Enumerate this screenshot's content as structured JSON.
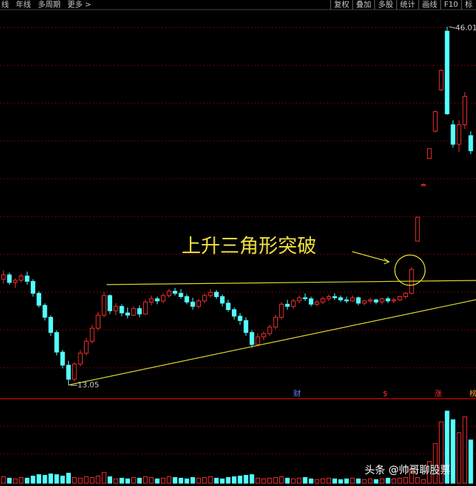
{
  "chart_data": {
    "type": "candlestick",
    "toolbar_left": [
      "线",
      "年线",
      "多周期",
      "更多 >"
    ],
    "toolbar_right": [
      "复权",
      "叠加",
      "多股",
      "统计",
      "画线",
      "F10",
      "标"
    ],
    "annotation": "上升三角形突破",
    "max_label": 46.01,
    "min_label": 13.05,
    "markers": [
      "财",
      "$",
      "涨",
      "榜"
    ],
    "watermark": "头条 @帅哥聊股票",
    "ylim": [
      11.5,
      47.2
    ],
    "volume_ylim": [
      0,
      100
    ],
    "up_color": "#ff3030",
    "down_color": "#54ffff",
    "open": [
      22.8,
      23.2,
      22.5,
      22.7,
      23.1,
      22.6,
      21.5,
      20.4,
      19.3,
      17.9,
      16.1,
      14.9,
      13.6,
      15.0,
      16.0,
      17.1,
      18.3,
      19.5,
      21.3,
      19.9,
      20.3,
      19.7,
      19.5,
      20.1,
      19.6,
      20.7,
      21.0,
      20.8,
      21.3,
      21.7,
      21.5,
      21.2,
      20.7,
      20.3,
      20.8,
      21.3,
      21.6,
      21.2,
      20.6,
      20.0,
      19.4,
      19.0,
      17.9,
      16.8,
      17.5,
      17.8,
      18.4,
      19.3,
      20.5,
      20.3,
      20.8,
      21.1,
      21.0,
      20.5,
      20.7,
      21.0,
      21.2,
      21.1,
      20.9,
      20.8,
      21.1,
      20.6,
      20.8,
      20.9,
      20.7,
      21.0,
      20.8,
      20.9,
      21.2,
      21.5,
      26.3,
      31.4,
      33.9,
      36.4,
      40.2,
      45.6,
      37.0,
      35.2,
      37.0,
      36.0
    ],
    "high": [
      23.6,
      23.4,
      22.9,
      23.3,
      23.5,
      22.8,
      21.7,
      20.6,
      19.5,
      18.1,
      16.3,
      15.3,
      15.2,
      16.3,
      17.4,
      18.6,
      19.8,
      21.6,
      21.4,
      20.6,
      20.5,
      20.2,
      20.3,
      20.4,
      20.9,
      21.3,
      21.2,
      21.5,
      21.9,
      22.0,
      21.9,
      21.4,
      21.1,
      21.0,
      21.5,
      21.9,
      21.8,
      21.4,
      20.9,
      20.2,
      19.7,
      19.3,
      18.1,
      17.8,
      18.0,
      18.6,
      19.5,
      20.7,
      20.9,
      21.0,
      21.3,
      21.5,
      21.2,
      20.9,
      21.2,
      21.4,
      21.5,
      21.3,
      21.2,
      21.3,
      21.2,
      20.9,
      21.1,
      21.0,
      21.1,
      21.2,
      21.1,
      21.3,
      21.6,
      23.9,
      28.5,
      31.6,
      34.8,
      38.3,
      42.1,
      46.01,
      37.4,
      37.4,
      40.0,
      36.4
    ],
    "low": [
      22.4,
      22.3,
      22.0,
      22.5,
      22.3,
      21.2,
      20.2,
      19.0,
      17.6,
      15.8,
      14.6,
      13.05,
      13.4,
      14.8,
      15.8,
      16.9,
      18.1,
      19.3,
      19.6,
      19.5,
      19.4,
      19.2,
      19.4,
      19.3,
      19.5,
      20.4,
      20.5,
      20.6,
      21.1,
      21.3,
      21.0,
      20.5,
      20.0,
      20.1,
      20.6,
      21.1,
      21.0,
      20.3,
      19.8,
      19.1,
      18.6,
      17.6,
      16.5,
      16.6,
      17.2,
      17.6,
      18.2,
      19.1,
      20.0,
      20.1,
      20.6,
      20.8,
      20.3,
      20.3,
      20.5,
      20.8,
      20.9,
      20.7,
      20.6,
      20.7,
      20.4,
      20.4,
      20.6,
      20.5,
      20.5,
      20.6,
      20.6,
      20.8,
      21.0,
      21.4,
      26.3,
      31.4,
      33.9,
      36.3,
      40.1,
      37.9,
      34.9,
      34.5,
      36.6,
      34.3
    ],
    "close": [
      23.2,
      22.5,
      22.7,
      23.1,
      22.6,
      21.5,
      20.4,
      19.3,
      17.9,
      16.1,
      14.9,
      13.6,
      15.0,
      16.0,
      17.1,
      18.3,
      19.5,
      21.3,
      19.9,
      20.3,
      19.7,
      19.5,
      20.1,
      19.6,
      20.7,
      21.0,
      20.8,
      21.3,
      21.7,
      21.5,
      21.2,
      20.7,
      20.3,
      20.8,
      21.3,
      21.6,
      21.2,
      20.6,
      20.0,
      19.4,
      19.0,
      17.9,
      16.8,
      17.5,
      17.8,
      18.4,
      19.3,
      20.5,
      20.3,
      20.8,
      21.1,
      21.0,
      20.5,
      20.7,
      21.0,
      21.2,
      21.1,
      20.9,
      20.8,
      21.1,
      20.6,
      20.8,
      20.9,
      20.7,
      21.0,
      20.8,
      20.9,
      21.2,
      21.5,
      23.7,
      28.5,
      31.5,
      34.8,
      38.2,
      42.0,
      38.0,
      35.2,
      37.0,
      39.6,
      34.6
    ],
    "volume": [
      9,
      7,
      6,
      8,
      7,
      10,
      12,
      11,
      13,
      12,
      10,
      14,
      8,
      7,
      9,
      8,
      10,
      15,
      9,
      6,
      7,
      6,
      8,
      7,
      9,
      8,
      6,
      7,
      9,
      8,
      7,
      6,
      8,
      7,
      8,
      9,
      7,
      6,
      8,
      9,
      10,
      11,
      12,
      7,
      6,
      7,
      8,
      9,
      7,
      6,
      7,
      8,
      6,
      5,
      6,
      7,
      6,
      5,
      6,
      7,
      6,
      5,
      6,
      5,
      6,
      7,
      6,
      7,
      8,
      20,
      8,
      5,
      30,
      55,
      85,
      100,
      88,
      70,
      92,
      60
    ]
  }
}
